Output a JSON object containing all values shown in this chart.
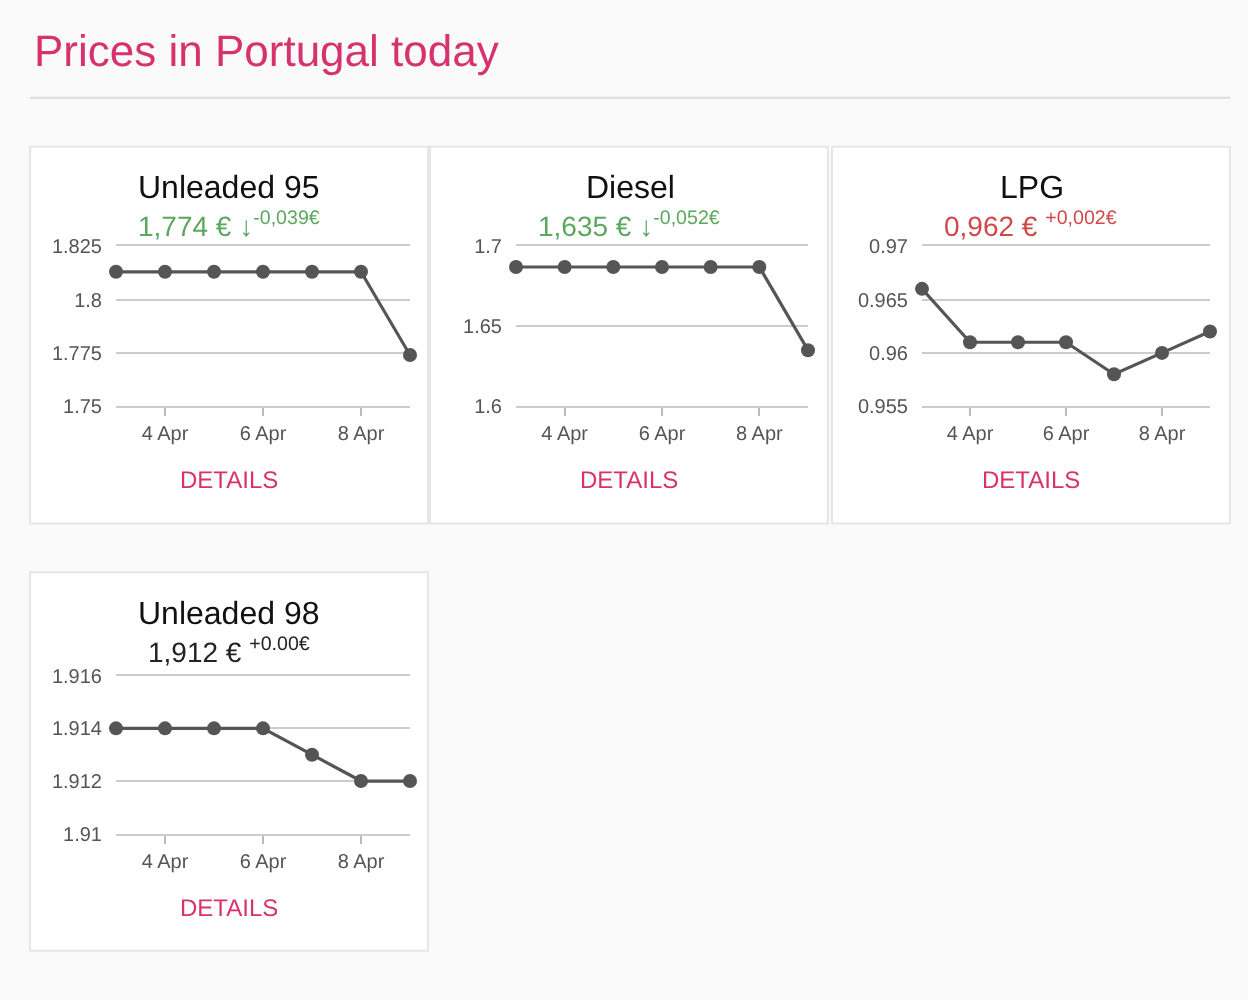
{
  "chart_data": [
    {
      "type": "line",
      "title": "Unleaded 95",
      "subtitle": "1,774 € ↓$^{-0,039€}$",
      "annotations": [
        "Prices in Portugal today",
        "DETAILS"
      ],
      "x": [
        "--04-03",
        "--04-04",
        "--04-05",
        "--04-06",
        "--04-07",
        "--04-08",
        "--04-09"
      ],
      "series": [
        {
          "color": "#555555",
          "values": [
            1.813,
            1.813,
            1.813,
            1.813,
            1.813,
            1.813,
            1.774
          ]
        }
      ],
      "xlim": [
        "--04-03",
        "--04-09"
      ],
      "xticks": [
        {
          "value": "--04-04",
          "label": "4 Apr"
        },
        {
          "value": "--04-06",
          "label": "6 Apr"
        },
        {
          "value": "--04-08",
          "label": "8 Apr"
        }
      ],
      "ylim": [
        1.75,
        1.825
      ],
      "yticks": [
        1.75,
        1.775,
        1.8,
        1.825
      ],
      "grid": "y",
      "marker": "circle",
      "line_style": "solid"
    },
    {
      "type": "line",
      "title": "Diesel",
      "subtitle": "1,635 € ↓$^{-0,052€}$",
      "annotations": [
        "DETAILS"
      ],
      "x": [
        "--04-03",
        "--04-04",
        "--04-05",
        "--04-06",
        "--04-07",
        "--04-08",
        "--04-09"
      ],
      "series": [
        {
          "color": "#555555",
          "values": [
            1.687,
            1.687,
            1.687,
            1.687,
            1.687,
            1.687,
            1.635
          ]
        }
      ],
      "xlim": [
        "--04-03",
        "--04-09"
      ],
      "xticks": [
        {
          "value": "--04-04",
          "label": "4 Apr"
        },
        {
          "value": "--04-06",
          "label": "6 Apr"
        },
        {
          "value": "--04-08",
          "label": "8 Apr"
        }
      ],
      "ylim": [
        1.6,
        1.7
      ],
      "yticks": [
        1.6,
        1.65,
        1.7
      ],
      "grid": "y",
      "marker": "circle",
      "line_style": "solid"
    },
    {
      "type": "line",
      "title": "LPG",
      "subtitle": "0,962 € $^{+0,002€}$",
      "annotations": [
        "DETAILS"
      ],
      "x": [
        "--04-03",
        "--04-04",
        "--04-05",
        "--04-06",
        "--04-07",
        "--04-08",
        "--04-09"
      ],
      "series": [
        {
          "color": "#555555",
          "values": [
            0.966,
            0.961,
            0.961,
            0.961,
            0.958,
            0.96,
            0.962
          ]
        }
      ],
      "xlim": [
        "--04-03",
        "--04-09"
      ],
      "xticks": [
        {
          "value": "--04-04",
          "label": "4 Apr"
        },
        {
          "value": "--04-06",
          "label": "6 Apr"
        },
        {
          "value": "--04-08",
          "label": "8 Apr"
        }
      ],
      "ylim": [
        0.955,
        0.97
      ],
      "yticks": [
        0.955,
        0.96,
        0.965,
        0.97
      ],
      "grid": "y",
      "marker": "circle",
      "line_style": "solid"
    },
    {
      "type": "line",
      "title": "Unleaded 98",
      "subtitle": "1,912 € $^{+0.00€}$",
      "annotations": [
        "DETAILS"
      ],
      "x": [
        "--04-03",
        "--04-04",
        "--04-05",
        "--04-06",
        "--04-07",
        "--04-08",
        "--04-09"
      ],
      "series": [
        {
          "color": "#555555",
          "values": [
            1.914,
            1.914,
            1.914,
            1.914,
            1.913,
            1.912,
            1.912
          ]
        }
      ],
      "xlim": [
        "--04-03",
        "--04-09"
      ],
      "xticks": [
        {
          "value": "--04-04",
          "label": "4 Apr"
        },
        {
          "value": "--04-06",
          "label": "6 Apr"
        },
        {
          "value": "--04-08",
          "label": "8 Apr"
        }
      ],
      "ylim": [
        1.91,
        1.916
      ],
      "yticks": [
        1.91,
        1.912,
        1.914,
        1.916
      ],
      "grid": "y",
      "marker": "circle",
      "line_style": "solid"
    }
  ]
}
